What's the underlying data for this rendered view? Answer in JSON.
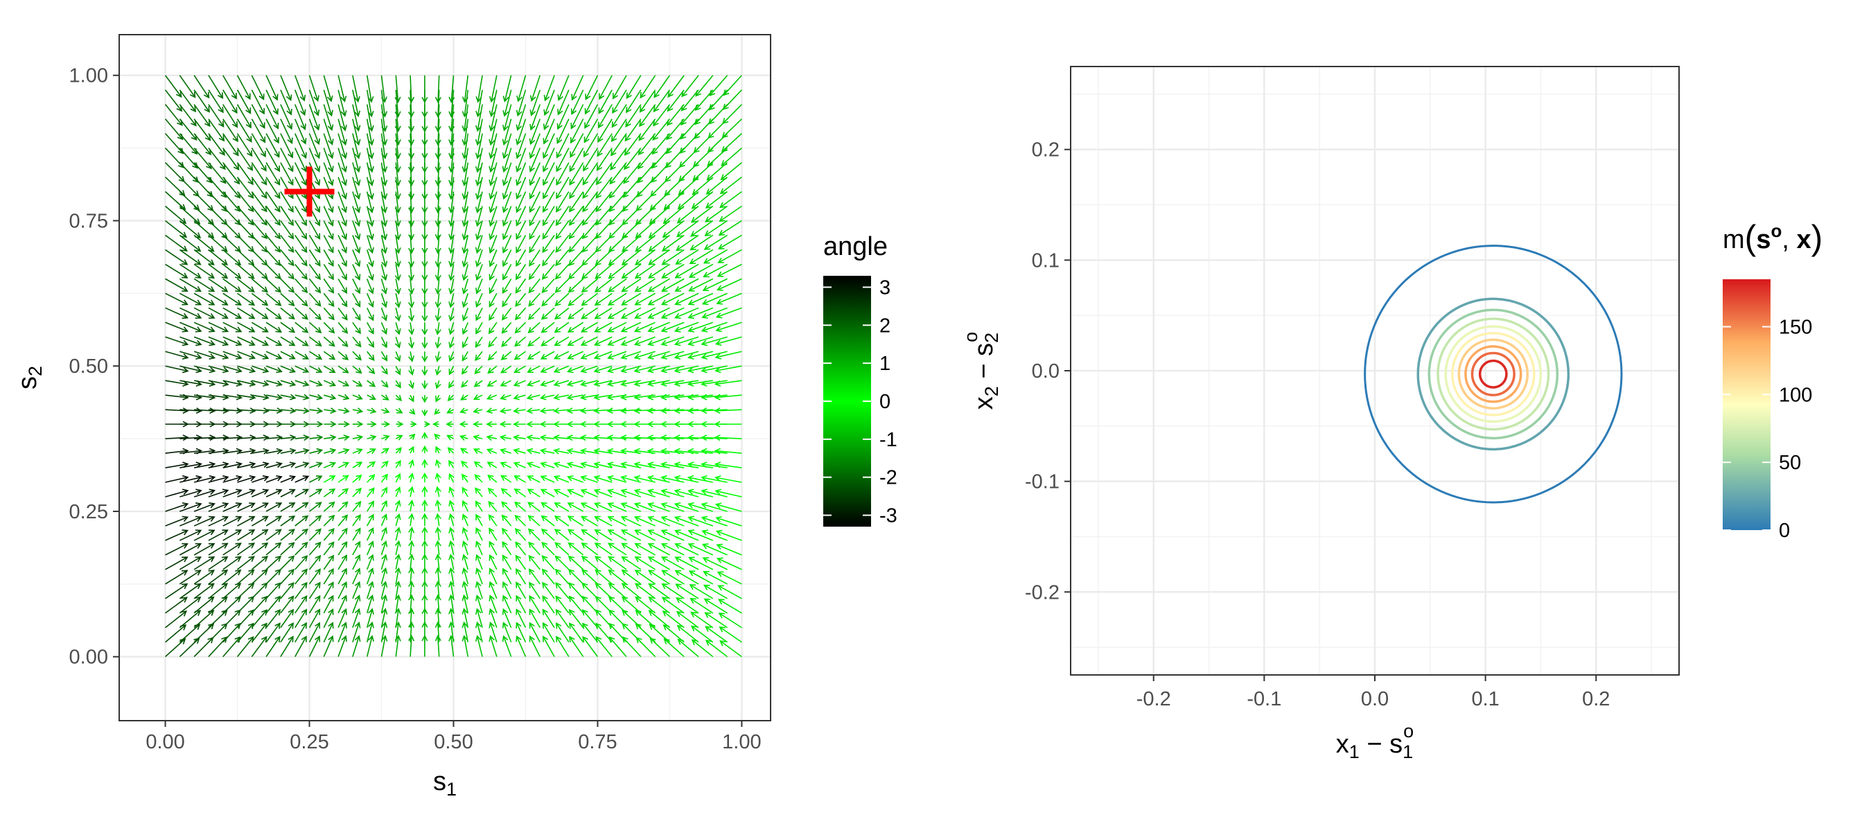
{
  "chart_data": [
    {
      "type": "quiver",
      "xlabel": "s",
      "xlabel_sub": "1",
      "ylabel": "s",
      "ylabel_sub": "2",
      "xlim": [
        -0.08,
        1.05
      ],
      "ylim": [
        -0.11,
        1.07
      ],
      "x_ticks": [
        0.0,
        0.25,
        0.5,
        0.75,
        1.0
      ],
      "x_tick_labels": [
        "0.00",
        "0.25",
        "0.50",
        "0.75",
        "1.00"
      ],
      "y_ticks": [
        0.0,
        0.25,
        0.5,
        0.75,
        1.0
      ],
      "y_tick_labels": [
        "0.00",
        "0.25",
        "0.50",
        "0.75",
        "1.00"
      ],
      "grid": true,
      "arrow_grid": {
        "x_start": 0.0,
        "x_end": 1.0,
        "y_start": 0.0,
        "y_end": 1.0,
        "n": 41
      },
      "field_center": [
        0.45,
        0.4
      ],
      "marker": {
        "shape": "plus",
        "x": 0.25,
        "y": 0.8,
        "color": "#ff0000"
      },
      "color_legend": {
        "title": "angle",
        "min": -3.3,
        "max": 3.3,
        "ticks": [
          3,
          2,
          1,
          0,
          -1,
          -2,
          -3
        ],
        "tick_labels": [
          "3",
          "2",
          "1",
          "0",
          "-1",
          "-2",
          "-3"
        ],
        "colors": [
          "#000000",
          "#00ff00",
          "#000000"
        ],
        "position": "right"
      }
    },
    {
      "type": "contour",
      "xlabel": "x",
      "xlabel_sub": "1",
      "xlabel_rest": " − s",
      "xlabel_sub2": "1",
      "xlabel_sup2": "o",
      "ylabel": "x",
      "ylabel_sub": "2",
      "ylabel_rest": " − s",
      "ylabel_sub2": "2",
      "ylabel_sup2": "o",
      "xlim": [
        -0.275,
        0.275
      ],
      "ylim": [
        -0.275,
        0.275
      ],
      "x_ticks": [
        -0.2,
        -0.1,
        0.0,
        0.1,
        0.2
      ],
      "x_tick_labels": [
        "-0.2",
        "-0.1",
        "0.0",
        "0.1",
        "0.2"
      ],
      "y_ticks": [
        -0.2,
        -0.1,
        0.0,
        0.1,
        0.2
      ],
      "y_tick_labels": [
        "-0.2",
        "-0.1",
        "0.0",
        "0.1",
        "0.2"
      ],
      "grid": true,
      "center": [
        0.107,
        -0.003
      ],
      "contour_levels": [
        0,
        20,
        40,
        60,
        80,
        100,
        120,
        140,
        160,
        180
      ],
      "contour_radii": [
        0.116,
        0.068,
        0.058,
        0.05,
        0.043,
        0.037,
        0.031,
        0.025,
        0.019,
        0.012
      ],
      "color_legend": {
        "title_main": "m",
        "title_s": "s",
        "title_sup": "o",
        "title_x": "x",
        "min": 0,
        "max": 185,
        "ticks": [
          150,
          100,
          50,
          0
        ],
        "tick_labels": [
          "150",
          "100",
          "50",
          "0"
        ],
        "colors": [
          "#2c7bb6",
          "#abdda4",
          "#ffffbf",
          "#fdae61",
          "#d7191c"
        ],
        "position": "right"
      }
    }
  ]
}
